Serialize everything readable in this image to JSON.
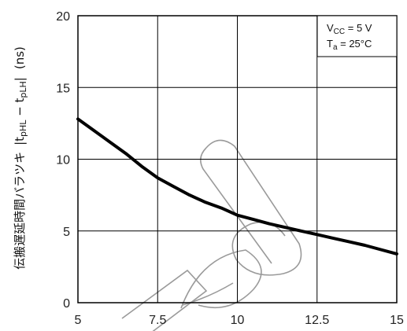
{
  "chart_data": {
    "type": "line",
    "xlim": [
      5,
      15
    ],
    "ylim": [
      0,
      20
    ],
    "x_ticks": [
      "5",
      "7.5",
      "10",
      "12.5",
      "15"
    ],
    "y_ticks": [
      "0",
      "5",
      "10",
      "15",
      "20"
    ],
    "ylabel": {
      "main": "伝搬遅延時間バラツキ",
      "formula_pre": "|t",
      "sub1": "pHL",
      "minus": " − t",
      "sub2": "pLH",
      "formula_post": "|",
      "unit": "(ns)"
    },
    "conditions": {
      "vcc_prefix": "V",
      "vcc_sub": "CC",
      "vcc_value": " = 5 V",
      "ta_prefix": "T",
      "ta_sub": "a",
      "ta_value": " = 25°C"
    },
    "grid": true,
    "watermark": "Discontinued",
    "series": [
      {
        "x": [
          5,
          5.5,
          6,
          6.5,
          7,
          7.5,
          8,
          8.5,
          9,
          9.5,
          10,
          10.5,
          11,
          11.5,
          12,
          12.5,
          13,
          13.5,
          14,
          14.5,
          15
        ],
        "y": [
          12.8,
          12.0,
          11.2,
          10.4,
          9.5,
          8.7,
          8.1,
          7.5,
          7.0,
          6.6,
          6.1,
          5.8,
          5.5,
          5.25,
          5.0,
          4.75,
          4.5,
          4.25,
          4.0,
          3.7,
          3.4
        ],
        "color": "#000000"
      }
    ]
  }
}
